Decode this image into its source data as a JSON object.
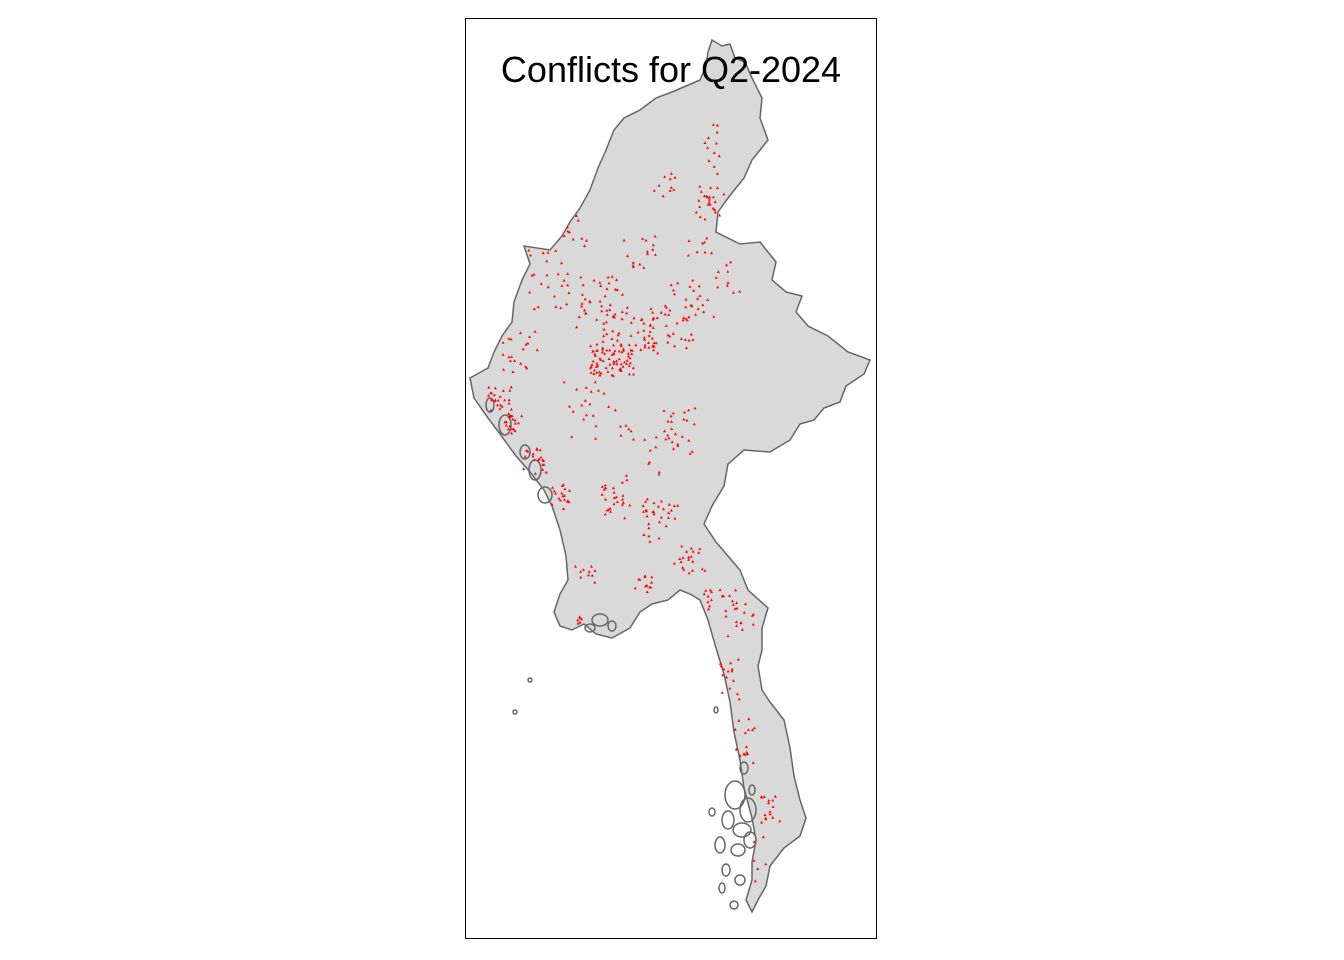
{
  "map": {
    "title": "Conflicts for Q2-2024",
    "colors": {
      "land_fill": "#d9d9d9",
      "border_stroke": "#666666",
      "event_marker": "#ff0000",
      "frame": "#000000",
      "background": "#ffffff"
    },
    "marker_shape": "triangle"
  }
}
